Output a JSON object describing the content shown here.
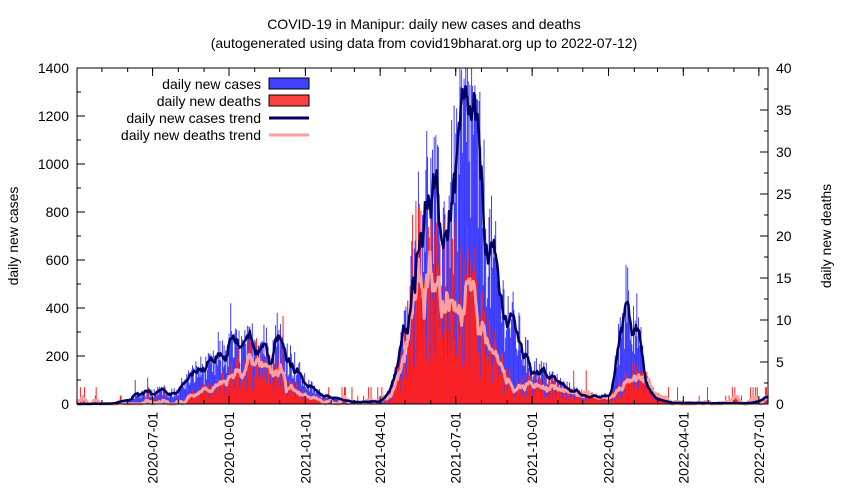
{
  "chart_data": {
    "type": "bar",
    "title": "COVID-19 in Manipur: daily new cases and deaths",
    "subtitle": "(autogenerated using data from covid19bharat.org up to 2022-07-12)",
    "ylabel": "daily new cases",
    "y2label": "daily new deaths",
    "ylim": [
      0,
      1400
    ],
    "y2lim": [
      0,
      40
    ],
    "xlim": [
      "2020-04-01",
      "2022-07-12"
    ],
    "yticks": [
      "0",
      "200",
      "400",
      "600",
      "800",
      "1000",
      "1200",
      "1400"
    ],
    "y2ticks": [
      "0",
      "5",
      "10",
      "15",
      "20",
      "25",
      "30",
      "35",
      "40"
    ],
    "xticks": [
      "2020-07-01",
      "2020-10-01",
      "2021-01-01",
      "2021-04-01",
      "2021-07-01",
      "2021-10-01",
      "2022-01-01",
      "2022-04-01",
      "2022-07-01"
    ],
    "legend_position": "top-left",
    "legend": [
      {
        "label": "daily new cases",
        "kind": "box",
        "color": "#4040ff"
      },
      {
        "label": "daily new deaths",
        "kind": "box",
        "color": "#ff4040"
      },
      {
        "label": "daily new cases trend",
        "kind": "line",
        "color": "#000060"
      },
      {
        "label": "daily new deaths trend",
        "kind": "line",
        "color": "#ffa0a0"
      }
    ],
    "cases_trend_keypoints": [
      [
        "2020-04-01",
        0
      ],
      [
        "2020-05-15",
        2
      ],
      [
        "2020-06-05",
        20
      ],
      [
        "2020-06-20",
        40
      ],
      [
        "2020-07-15",
        55
      ],
      [
        "2020-07-25",
        45
      ],
      [
        "2020-08-10",
        95
      ],
      [
        "2020-08-25",
        140
      ],
      [
        "2020-09-10",
        150
      ],
      [
        "2020-09-25",
        200
      ],
      [
        "2020-10-10",
        230
      ],
      [
        "2020-10-20",
        220
      ],
      [
        "2020-11-05",
        270
      ],
      [
        "2020-11-20",
        220
      ],
      [
        "2020-12-01",
        260
      ],
      [
        "2020-12-15",
        180
      ],
      [
        "2020-12-31",
        90
      ],
      [
        "2021-01-15",
        50
      ],
      [
        "2021-02-01",
        25
      ],
      [
        "2021-03-01",
        8
      ],
      [
        "2021-04-01",
        10
      ],
      [
        "2021-04-15",
        60
      ],
      [
        "2021-05-01",
        300
      ],
      [
        "2021-05-15",
        650
      ],
      [
        "2021-05-25",
        880
      ],
      [
        "2021-06-05",
        800
      ],
      [
        "2021-06-15",
        700
      ],
      [
        "2021-06-25",
        800
      ],
      [
        "2021-07-05",
        1020
      ],
      [
        "2021-07-20",
        1170
      ],
      [
        "2021-07-30",
        900
      ],
      [
        "2021-08-10",
        650
      ],
      [
        "2021-08-25",
        420
      ],
      [
        "2021-09-05",
        350
      ],
      [
        "2021-09-20",
        230
      ],
      [
        "2021-10-01",
        150
      ],
      [
        "2021-10-20",
        120
      ],
      [
        "2021-11-10",
        70
      ],
      [
        "2021-12-01",
        40
      ],
      [
        "2021-12-20",
        25
      ],
      [
        "2022-01-05",
        40
      ],
      [
        "2022-01-15",
        300
      ],
      [
        "2022-01-25",
        450
      ],
      [
        "2022-02-05",
        320
      ],
      [
        "2022-02-15",
        80
      ],
      [
        "2022-02-28",
        20
      ],
      [
        "2022-03-20",
        5
      ],
      [
        "2022-06-15",
        3
      ],
      [
        "2022-07-01",
        10
      ],
      [
        "2022-07-12",
        30
      ]
    ],
    "deaths_trend_keypoints": [
      [
        "2020-04-01",
        0
      ],
      [
        "2020-07-15",
        0.2
      ],
      [
        "2020-08-10",
        0.5
      ],
      [
        "2020-08-25",
        1.5
      ],
      [
        "2020-09-10",
        1.5
      ],
      [
        "2020-09-25",
        2.5
      ],
      [
        "2020-10-10",
        4
      ],
      [
        "2020-10-25",
        5
      ],
      [
        "2020-11-10",
        5.5
      ],
      [
        "2020-11-20",
        3.5
      ],
      [
        "2020-12-01",
        4
      ],
      [
        "2020-12-15",
        2
      ],
      [
        "2020-12-31",
        1
      ],
      [
        "2021-01-20",
        0.5
      ],
      [
        "2021-03-01",
        0.2
      ],
      [
        "2021-04-05",
        0.3
      ],
      [
        "2021-04-20",
        2
      ],
      [
        "2021-05-01",
        7
      ],
      [
        "2021-05-15",
        15.5
      ],
      [
        "2021-05-25",
        15
      ],
      [
        "2021-06-05",
        13.5
      ],
      [
        "2021-06-15",
        11
      ],
      [
        "2021-06-25",
        13
      ],
      [
        "2021-07-05",
        15
      ],
      [
        "2021-07-20",
        13
      ],
      [
        "2021-08-01",
        9
      ],
      [
        "2021-08-15",
        6
      ],
      [
        "2021-08-25",
        4
      ],
      [
        "2021-09-10",
        2
      ],
      [
        "2021-10-01",
        2.5
      ],
      [
        "2021-10-20",
        2
      ],
      [
        "2021-11-10",
        1.5
      ],
      [
        "2021-12-01",
        1
      ],
      [
        "2021-12-20",
        0.8
      ],
      [
        "2022-01-05",
        0.8
      ],
      [
        "2022-01-20",
        2.5
      ],
      [
        "2022-02-01",
        3
      ],
      [
        "2022-02-15",
        2.5
      ],
      [
        "2022-02-28",
        1
      ],
      [
        "2022-03-20",
        0.2
      ],
      [
        "2022-07-12",
        0.1
      ]
    ],
    "cases_spikes": [
      [
        "2020-06-10",
        100
      ],
      [
        "2020-06-25",
        110
      ],
      [
        "2020-09-18",
        300
      ],
      [
        "2020-10-03",
        420
      ],
      [
        "2020-11-12",
        330
      ],
      [
        "2020-11-28",
        380
      ],
      [
        "2021-05-28",
        1030
      ],
      [
        "2021-07-18",
        1330
      ],
      [
        "2021-07-23",
        1280
      ],
      [
        "2022-01-22",
        580
      ]
    ],
    "deaths_spikes": [
      [
        "2020-12-05",
        10.5
      ],
      [
        "2021-05-10",
        22.5
      ],
      [
        "2021-05-20",
        23
      ],
      [
        "2021-06-18",
        22
      ],
      [
        "2021-07-15",
        21
      ],
      [
        "2021-10-15",
        4
      ],
      [
        "2021-11-20",
        4
      ],
      [
        "2021-12-05",
        4
      ],
      [
        "2022-01-30",
        5
      ]
    ]
  }
}
